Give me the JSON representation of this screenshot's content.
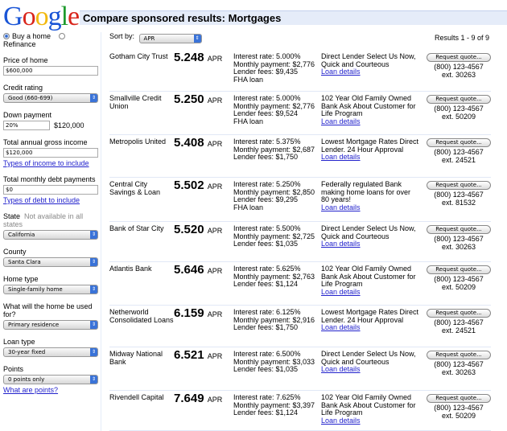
{
  "header": {
    "logo": "Google",
    "title": "Compare sponsored results: Mortgages"
  },
  "sidebar": {
    "purpose_options": [
      {
        "label": "Buy a home",
        "selected": true
      },
      {
        "label": "Refinance",
        "selected": false
      }
    ],
    "price_label": "Price of home",
    "price_value": "$600,000",
    "credit_label": "Credit rating",
    "credit_value": "Good (660-699)",
    "down_label": "Down payment",
    "down_value": "20%",
    "down_amount": "$120,000",
    "income_label": "Total annual gross income",
    "income_value": "$120,000",
    "income_link": "Types of income to include",
    "debt_label": "Total monthly debt payments",
    "debt_value": "$0",
    "debt_link": "Types of debt to include",
    "state_label": "State",
    "state_note": "Not available in all states",
    "state_value": "California",
    "county_label": "County",
    "county_value": "Santa Clara",
    "home_type_label": "Home type",
    "home_type_value": "Single-family home",
    "use_label": "What will the home be used for?",
    "use_value": "Primary residence",
    "loan_type_label": "Loan type",
    "loan_type_value": "30-year fixed",
    "points_label": "Points",
    "points_value": "0 points only",
    "points_link": "What are points?"
  },
  "main": {
    "sort_label": "Sort by:",
    "sort_value": "APR",
    "results_text": "Results 1 - 9 of 9",
    "apr_unit": "APR",
    "button_label": "Request quote...",
    "details_link": "Loan details",
    "rows": [
      {
        "lender": "Gotham City Trust",
        "apr": "5.248",
        "rate": "Interest rate: 5.000%",
        "payment": "Monthly payment: $2,776",
        "fees": "Lender fees: $9,435",
        "fha": "FHA loan",
        "desc": "Direct Lender Select Us Now, Quick and Courteous",
        "phone": "(800) 123-4567",
        "ext": "ext. 30263"
      },
      {
        "lender": "Smallville Credit Union",
        "apr": "5.250",
        "rate": "Interest rate: 5.000%",
        "payment": "Monthly payment: $2,776",
        "fees": "Lender fees: $9,524",
        "fha": "FHA loan",
        "desc": "102 Year Old Family Owned Bank Ask About Customer for Life Program",
        "phone": "(800) 123-4567",
        "ext": "ext. 50209"
      },
      {
        "lender": "Metropolis United",
        "apr": "5.408",
        "rate": "Interest rate: 5.375%",
        "payment": "Monthly payment: $2,687",
        "fees": "Lender fees: $1,750",
        "fha": "",
        "desc": "Lowest Mortgage Rates Direct Lender. 24 Hour Approval",
        "phone": "(800) 123-4567",
        "ext": "ext. 24521"
      },
      {
        "lender": "Central City Savings & Loan",
        "apr": "5.502",
        "rate": "Interest rate: 5.250%",
        "payment": "Monthly payment: $2,850",
        "fees": "Lender fees: $9,295",
        "fha": "FHA loan",
        "desc": "Federally regulated Bank making home loans for over 80 years!",
        "phone": "(800) 123-4567",
        "ext": "ext. 81532"
      },
      {
        "lender": "Bank of Star City",
        "apr": "5.520",
        "rate": "Interest rate: 5.500%",
        "payment": "Monthly payment: $2,725",
        "fees": "Lender fees: $1,035",
        "fha": "",
        "desc": "Direct Lender Select Us Now, Quick and Courteous",
        "phone": "(800) 123-4567",
        "ext": "ext. 30263"
      },
      {
        "lender": "Atlantis Bank",
        "apr": "5.646",
        "rate": "Interest rate: 5.625%",
        "payment": "Monthly payment: $2,763",
        "fees": "Lender fees: $1,124",
        "fha": "",
        "desc": "102 Year Old Family Owned Bank Ask About Customer for Life Program",
        "phone": "(800) 123-4567",
        "ext": "ext. 50209"
      },
      {
        "lender": "Netherworld Consolidated Loans",
        "apr": "6.159",
        "rate": "Interest rate: 6.125%",
        "payment": "Monthly payment: $2,916",
        "fees": "Lender fees: $1,750",
        "fha": "",
        "desc": "Lowest Mortgage Rates Direct Lender. 24 Hour Approval",
        "phone": "(800) 123-4567",
        "ext": "ext. 24521"
      },
      {
        "lender": "Midway National Bank",
        "apr": "6.521",
        "rate": "Interest rate: 6.500%",
        "payment": "Monthly payment: $3,033",
        "fees": "Lender fees: $1,035",
        "fha": "",
        "desc": "Direct Lender Select Us Now, Quick and Courteous",
        "phone": "(800) 123-4567",
        "ext": "ext. 30263"
      },
      {
        "lender": "Rivendell Capital",
        "apr": "7.649",
        "rate": "Interest rate: 7.625%",
        "payment": "Monthly payment: $3,397",
        "fees": "Lender fees: $1,124",
        "fha": "",
        "desc": "102 Year Old Family Owned Bank Ask About Customer for Life Program",
        "phone": "(800) 123-4567",
        "ext": "ext. 50209"
      }
    ]
  }
}
